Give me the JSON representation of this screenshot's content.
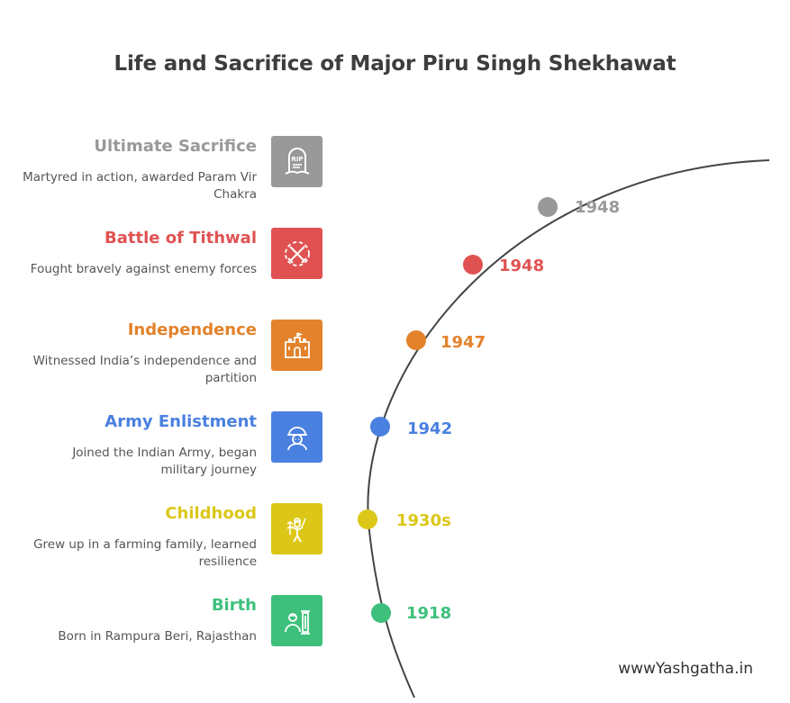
{
  "title": "Life and Sacrifice of Major Piru Singh Shekhawat",
  "watermark": "wwwYashgatha.in",
  "events": [
    {
      "title": "Ultimate Sacrifice",
      "description": "Martyred in action, awarded Param Vir Chakra",
      "year": "1948",
      "color": "#999999",
      "icon": "rip-gravestone-icon"
    },
    {
      "title": "Battle of Tithwal",
      "description": "Fought bravely against enemy forces",
      "year": "1948",
      "color": "#e05252",
      "icon": "crossed-swords-icon"
    },
    {
      "title": "Independence",
      "description": "Witnessed India’s independence and partition",
      "year": "1947",
      "color": "#e3822b",
      "icon": "fort-icon"
    },
    {
      "title": "Army Enlistment",
      "description": "Joined the Indian Army, began military journey",
      "year": "1942",
      "color": "#4a80e0",
      "icon": "soldier-icon"
    },
    {
      "title": "Childhood",
      "description": "Grew up in a farming family, learned resilience",
      "year": "1930s",
      "color": "#dcc719",
      "icon": "farmer-icon"
    },
    {
      "title": "Birth",
      "description": "Born in Rampura Beri, Rajasthan",
      "year": "1918",
      "color": "#3ec07c",
      "icon": "baby-pillar-icon"
    }
  ]
}
